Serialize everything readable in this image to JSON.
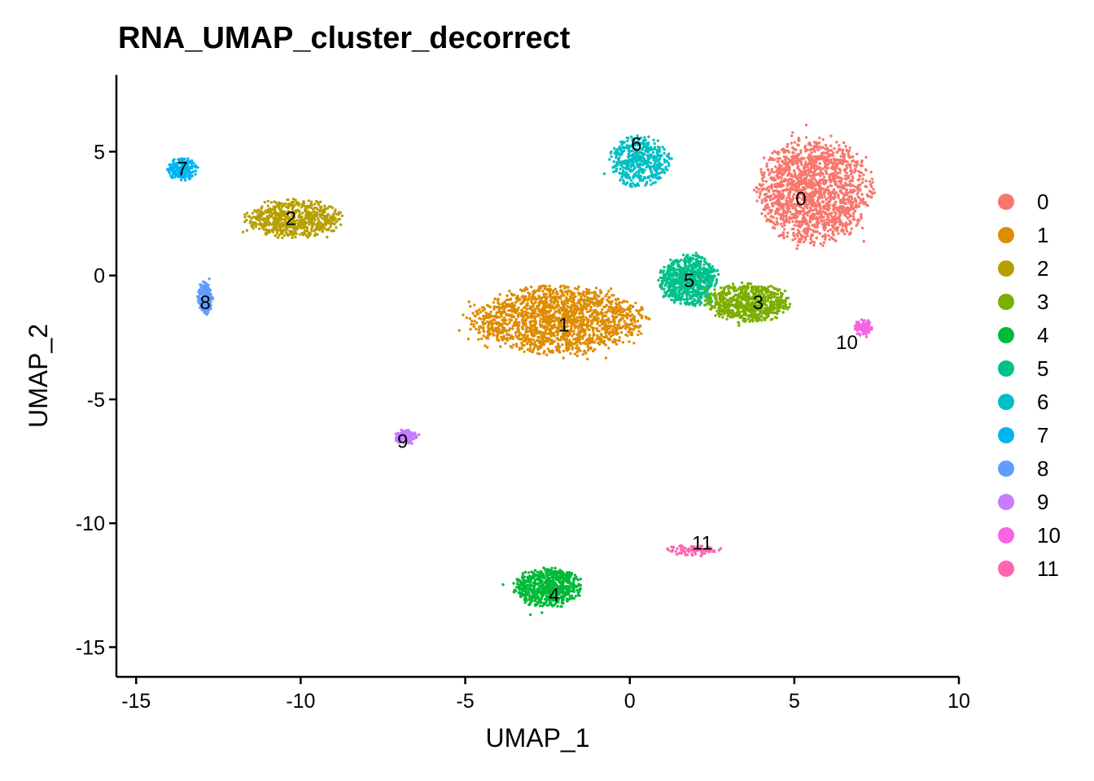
{
  "chart_data": {
    "type": "scatter",
    "title": "RNA_UMAP_cluster_decorrect",
    "xlabel": "UMAP_1",
    "ylabel": "UMAP_2",
    "xlim": [
      -15.6,
      10.0
    ],
    "ylim": [
      -16.2,
      8.1
    ],
    "x_ticks": [
      -15,
      -10,
      -5,
      0,
      5,
      10
    ],
    "y_ticks": [
      5,
      0,
      -5,
      -10,
      -15
    ],
    "grid": false,
    "legend_position": "right",
    "legend": [
      "0",
      "1",
      "2",
      "3",
      "4",
      "5",
      "6",
      "7",
      "8",
      "9",
      "10",
      "11"
    ],
    "colors": {
      "0": "#F8766D",
      "1": "#DE8C00",
      "2": "#B79F00",
      "3": "#7CAE00",
      "4": "#00BA38",
      "5": "#00C08B",
      "6": "#00BFC4",
      "7": "#00B4F0",
      "8": "#619CFF",
      "9": "#C77CFF",
      "10": "#F564E3",
      "11": "#FF64B0"
    },
    "clusters": [
      {
        "name": "0",
        "label": [
          5.2,
          3.1
        ],
        "center": [
          5.6,
          3.4
        ],
        "spread": [
          1.5,
          1.9
        ]
      },
      {
        "name": "1",
        "label": [
          -2.0,
          -2.0
        ],
        "center": [
          -2.2,
          -1.8
        ],
        "spread": [
          2.4,
          1.2
        ]
      },
      {
        "name": "2",
        "label": [
          -10.3,
          2.3
        ],
        "center": [
          -10.2,
          2.3
        ],
        "spread": [
          1.3,
          0.7
        ]
      },
      {
        "name": "3",
        "label": [
          3.9,
          -1.1
        ],
        "center": [
          3.6,
          -1.1
        ],
        "spread": [
          1.1,
          0.7
        ]
      },
      {
        "name": "4",
        "label": [
          -2.3,
          -12.9
        ],
        "center": [
          -2.5,
          -12.6
        ],
        "spread": [
          0.9,
          0.7
        ]
      },
      {
        "name": "5",
        "label": [
          1.8,
          -0.2
        ],
        "center": [
          1.8,
          -0.2
        ],
        "spread": [
          0.8,
          0.9
        ]
      },
      {
        "name": "6",
        "label": [
          0.2,
          5.3
        ],
        "center": [
          0.3,
          4.6
        ],
        "spread": [
          0.8,
          0.9
        ]
      },
      {
        "name": "7",
        "label": [
          -13.6,
          4.3
        ],
        "center": [
          -13.6,
          4.3
        ],
        "spread": [
          0.4,
          0.4
        ]
      },
      {
        "name": "8",
        "label": [
          -12.9,
          -1.1
        ],
        "center": [
          -12.9,
          -0.9
        ],
        "spread": [
          0.2,
          0.6
        ]
      },
      {
        "name": "9",
        "label": [
          -6.9,
          -6.7
        ],
        "center": [
          -6.8,
          -6.5
        ],
        "spread": [
          0.35,
          0.25
        ]
      },
      {
        "name": "10",
        "label": [
          6.6,
          -2.7
        ],
        "center": [
          7.1,
          -2.1
        ],
        "spread": [
          0.25,
          0.3
        ]
      },
      {
        "name": "11",
        "label": [
          2.2,
          -10.8
        ],
        "center": [
          1.9,
          -11.1
        ],
        "spread": [
          0.8,
          0.2
        ]
      }
    ]
  }
}
